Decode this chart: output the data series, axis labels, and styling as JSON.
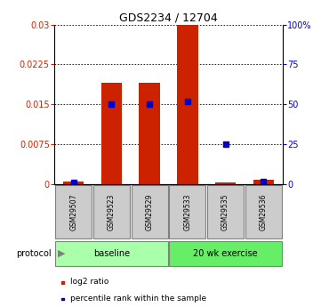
{
  "title": "GDS2234 / 12704",
  "samples": [
    "GSM29507",
    "GSM29523",
    "GSM29529",
    "GSM29533",
    "GSM29535",
    "GSM29536"
  ],
  "log2_ratio": [
    0.0005,
    0.019,
    0.019,
    0.03,
    0.0003,
    0.0008
  ],
  "percentile_rank": [
    1.0,
    50.0,
    50.0,
    52.0,
    25.0,
    1.5
  ],
  "ylim_left": [
    0,
    0.03
  ],
  "ylim_right": [
    0,
    100
  ],
  "yticks_left": [
    0,
    0.0075,
    0.015,
    0.0225,
    0.03
  ],
  "yticks_right": [
    0,
    25,
    50,
    75,
    100
  ],
  "ytick_labels_left": [
    "0",
    "0.0075",
    "0.015",
    "0.0225",
    "0.03"
  ],
  "ytick_labels_right": [
    "0",
    "25",
    "50",
    "75",
    "100%"
  ],
  "bar_color": "#cc2200",
  "dot_color": "#0000cc",
  "protocol_groups": [
    {
      "label": "baseline",
      "samples": [
        0,
        1,
        2
      ],
      "color": "#aaffaa"
    },
    {
      "label": "20 wk exercise",
      "samples": [
        3,
        4,
        5
      ],
      "color": "#66ee66"
    }
  ],
  "protocol_label": "protocol",
  "legend_items": [
    {
      "label": "log2 ratio",
      "color": "#cc2200"
    },
    {
      "label": "percentile rank within the sample",
      "color": "#0000cc"
    }
  ],
  "sample_box_color": "#cccccc",
  "bar_width": 0.55,
  "n_samples": 6,
  "baseline_count": 3,
  "exercise_count": 3
}
